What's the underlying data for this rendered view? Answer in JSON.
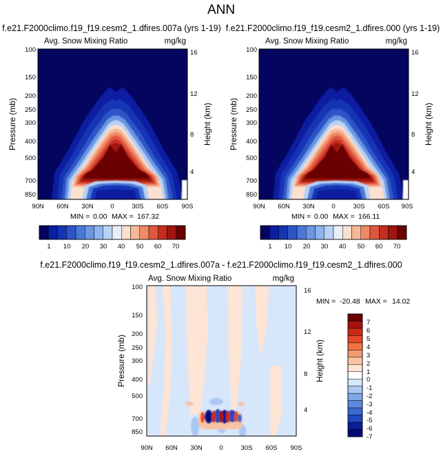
{
  "figure": {
    "title": "ANN"
  },
  "chart_data": [
    {
      "type": "heatmap",
      "run_title": "f.e21.F2000climo.f19_f19.cesm2_1.dfires.007a (yrs 1-19)",
      "variable": "Avg. Snow Mixing Ratio",
      "units": "mg/kg",
      "ylabel": "Pressure (mb)",
      "ylabel_right": "Height (km)",
      "x_ticks": [
        "90N",
        "60N",
        "30N",
        "0",
        "30S",
        "60S",
        "90S"
      ],
      "y_ticks": [
        "100",
        "150",
        "200",
        "250",
        "300",
        "400",
        "500",
        "700",
        "850"
      ],
      "height_ticks": [
        "16",
        "12",
        "8",
        "4"
      ],
      "min_label": "MIN =",
      "min_value": "0.00",
      "max_label": "MAX =",
      "max_value": "167.32",
      "levels": [
        "1",
        "10",
        "20",
        "30",
        "40",
        "50",
        "60",
        "70"
      ],
      "colors": [
        "#03055f",
        "#0a1ea0",
        "#1436b4",
        "#2d55c8",
        "#4878d8",
        "#6a96e2",
        "#8fb4ec",
        "#b9d2f4",
        "#e8eef8",
        "#fbe0cf",
        "#f7b89a",
        "#ee8a66",
        "#e0573f",
        "#c62d20",
        "#9e1510",
        "#6b0000"
      ],
      "peak": 167.32
    },
    {
      "type": "heatmap",
      "run_title": "f.e21.F2000climo.f19_f19.cesm2_1.dfires.000 (yrs 1-19)",
      "variable": "Avg. Snow Mixing Ratio",
      "units": "mg/kg",
      "ylabel": "Pressure (mb)",
      "ylabel_right": "Height (km)",
      "x_ticks": [
        "90N",
        "60N",
        "30N",
        "0",
        "30S",
        "60S",
        "90S"
      ],
      "y_ticks": [
        "100",
        "150",
        "200",
        "250",
        "300",
        "400",
        "500",
        "700",
        "850"
      ],
      "height_ticks": [
        "16",
        "12",
        "8",
        "4"
      ],
      "min_label": "MIN =",
      "min_value": "0.00",
      "max_label": "MAX =",
      "max_value": "166.11",
      "levels": [
        "1",
        "10",
        "20",
        "30",
        "40",
        "50",
        "60",
        "70"
      ],
      "colors": [
        "#03055f",
        "#0a1ea0",
        "#1436b4",
        "#2d55c8",
        "#4878d8",
        "#6a96e2",
        "#8fb4ec",
        "#b9d2f4",
        "#e8eef8",
        "#fbe0cf",
        "#f7b89a",
        "#ee8a66",
        "#e0573f",
        "#c62d20",
        "#9e1510",
        "#6b0000"
      ],
      "peak": 166.11
    },
    {
      "type": "heatmap",
      "run_title": "f.e21.F2000climo.f19_f19.cesm2_1.dfires.007a - f.e21.F2000climo.f19_f19.cesm2_1.dfires.000",
      "variable": "Avg. Snow Mixing Ratio",
      "units": "mg/kg",
      "ylabel": "Pressure (mb)",
      "ylabel_right": "Height (km)",
      "x_ticks": [
        "90N",
        "60N",
        "30N",
        "0",
        "30S",
        "60S",
        "90S"
      ],
      "y_ticks": [
        "100",
        "150",
        "200",
        "250",
        "300",
        "400",
        "500",
        "700",
        "850"
      ],
      "height_ticks": [
        "16",
        "12",
        "8",
        "4"
      ],
      "min_label": "MIN =",
      "min_value": "-20.48",
      "max_label": "MAX =",
      "max_value": "14.02",
      "levels": [
        "7",
        "6",
        "5",
        "4",
        "3",
        "2",
        "1",
        "0",
        "-1",
        "-2",
        "-3",
        "-4",
        "-5",
        "-6",
        "-7"
      ],
      "colors": [
        "#6b0000",
        "#a81210",
        "#cc2a18",
        "#e84a28",
        "#f2713f",
        "#f59a72",
        "#f8c2a4",
        "#fde4d4",
        "#ffffff",
        "#d6e6fb",
        "#aac8f2",
        "#7fa8ea",
        "#5a8ae0",
        "#3a6ad2",
        "#2048c0",
        "#0a1e98",
        "#020a78"
      ]
    }
  ]
}
